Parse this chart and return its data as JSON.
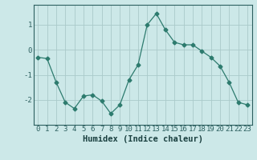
{
  "x": [
    0,
    1,
    2,
    3,
    4,
    5,
    6,
    7,
    8,
    9,
    10,
    11,
    12,
    13,
    14,
    15,
    16,
    17,
    18,
    19,
    20,
    21,
    22,
    23
  ],
  "y": [
    -0.3,
    -0.35,
    -1.3,
    -2.1,
    -2.35,
    -1.85,
    -1.8,
    -2.05,
    -2.55,
    -2.2,
    -1.2,
    -0.6,
    1.0,
    1.45,
    0.8,
    0.3,
    0.2,
    0.2,
    -0.05,
    -0.3,
    -0.65,
    -1.3,
    -2.1,
    -2.2
  ],
  "line_color": "#2d7b6e",
  "marker": "D",
  "marker_size": 2.5,
  "bg_color": "#cce8e8",
  "grid_color": "#aacaca",
  "xlabel": "Humidex (Indice chaleur)",
  "ylim": [
    -3.0,
    1.8
  ],
  "yticks": [
    -2,
    -1,
    0,
    1
  ],
  "xticks": [
    0,
    1,
    2,
    3,
    4,
    5,
    6,
    7,
    8,
    9,
    10,
    11,
    12,
    13,
    14,
    15,
    16,
    17,
    18,
    19,
    20,
    21,
    22,
    23
  ],
  "tick_color": "#2d6060",
  "label_color": "#1a4040",
  "font_size": 6.5,
  "xlabel_fontsize": 7.5
}
